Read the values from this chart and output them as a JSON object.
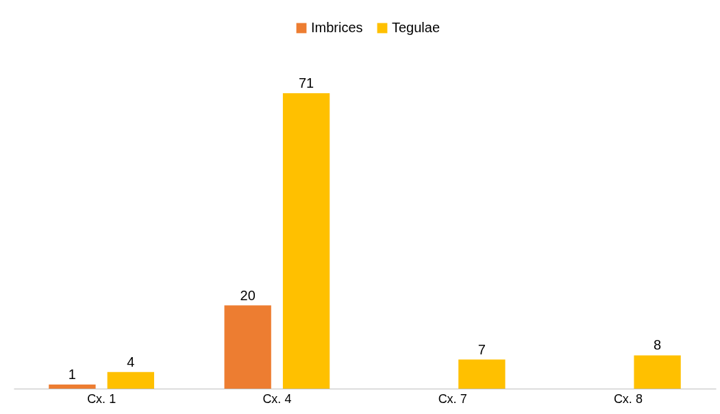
{
  "chart_data": {
    "type": "bar",
    "categories": [
      "Cx. 1",
      "Cx. 4",
      "Cx. 7",
      "Cx. 8"
    ],
    "series": [
      {
        "name": "Imbrices",
        "color": "#ed7d31",
        "values": [
          1,
          20,
          null,
          null
        ]
      },
      {
        "name": "Tegulae",
        "color": "#ffc000",
        "values": [
          4,
          71,
          7,
          8
        ]
      }
    ],
    "data_labels": true,
    "grid": false,
    "legend": "top"
  }
}
